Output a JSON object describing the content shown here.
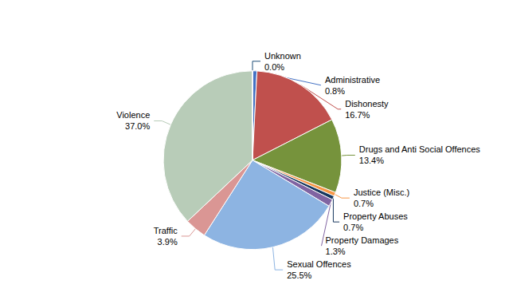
{
  "chart_data": {
    "type": "pie",
    "categories": [
      "Administrative",
      "Dishonesty",
      "Drugs and Anti Social Offences",
      "Justice (Misc.)",
      "Property Abuses",
      "Property Damages",
      "Sexual Offences",
      "Traffic",
      "Violence",
      "Unknown"
    ],
    "values": [
      0.8,
      16.7,
      13.4,
      0.7,
      0.7,
      1.3,
      25.5,
      3.9,
      37.0,
      0.0
    ],
    "value_labels": [
      "0.8%",
      "16.7%",
      "13.4%",
      "0.7%",
      "0.7%",
      "1.3%",
      "25.5%",
      "3.9%",
      "37.0%",
      "0.0%"
    ],
    "colors": [
      "#4472C4",
      "#C0504D",
      "#76933C",
      "#F79646",
      "#17375E",
      "#8064A2",
      "#8DB4E2",
      "#DA9694",
      "#B8CCB8",
      "#1F4E79"
    ],
    "data_labels": true
  }
}
